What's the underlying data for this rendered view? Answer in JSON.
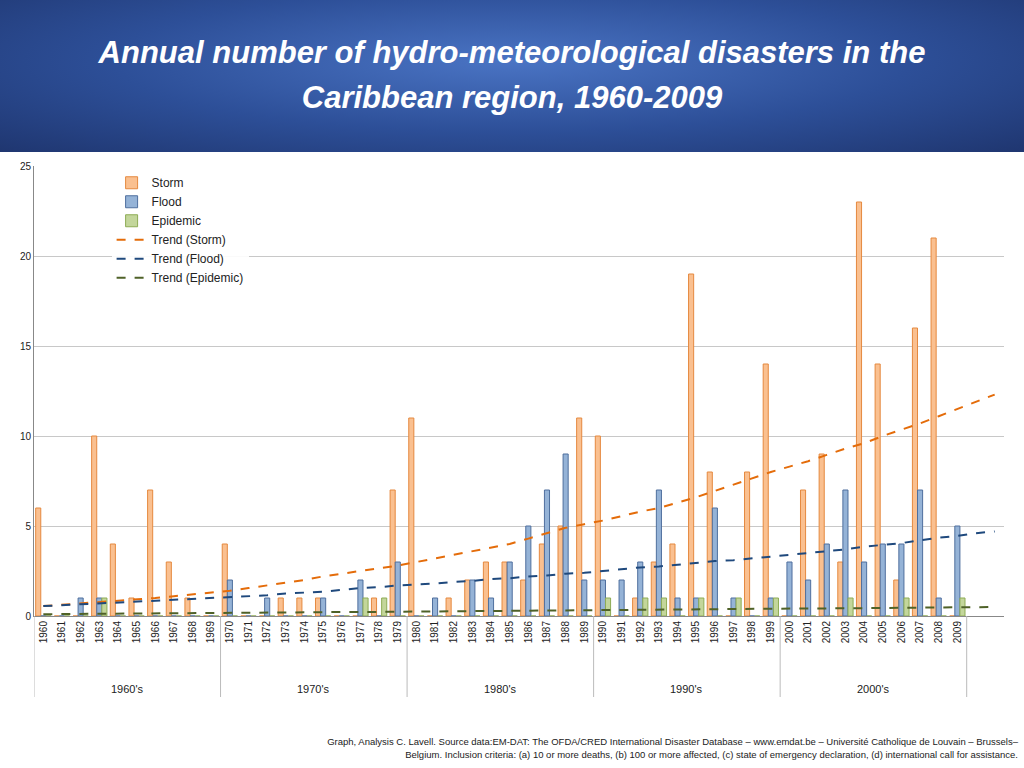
{
  "chart_data": {
    "type": "bar",
    "title": "Annual number of hydro-meteorological disasters in the Caribbean region, 1960-2009",
    "source": "Graph, Analysis C. Lavell. Source data:EM-DAT: The OFDA/CRED International Disaster Database – www.emdat.be – Université Catholique de Louvain – Brussels– Belgium. Inclusion criteria: (a) 10 or more deaths, (b) 100 or more affected, (c) state of emergency declaration, (d) international call for assistance.",
    "categories": [
      "1960",
      "1961",
      "1962",
      "1963",
      "1964",
      "1965",
      "1966",
      "1967",
      "1968",
      "1969",
      "1970",
      "1971",
      "1972",
      "1973",
      "1974",
      "1975",
      "1976",
      "1977",
      "1978",
      "1979",
      "1980",
      "1981",
      "1982",
      "1983",
      "1984",
      "1985",
      "1986",
      "1987",
      "1988",
      "1989",
      "1990",
      "1991",
      "1992",
      "1993",
      "1994",
      "1995",
      "1996",
      "1997",
      "1998",
      "1999",
      "2000",
      "2001",
      "2002",
      "2003",
      "2004",
      "2005",
      "2006",
      "2007",
      "2008",
      "2009",
      null,
      null
    ],
    "x_groups": [
      "1960's",
      "1970's",
      "1980's",
      "1990's",
      "2000's"
    ],
    "series": [
      {
        "name": "Storm",
        "type": "bar",
        "color": "#fac090",
        "values": [
          6,
          0,
          0,
          10,
          4,
          1,
          7,
          3,
          1,
          0,
          4,
          0,
          0,
          1,
          1,
          1,
          0,
          0,
          1,
          7,
          11,
          0,
          1,
          2,
          3,
          3,
          2,
          4,
          5,
          11,
          10,
          0,
          1,
          3,
          4,
          19,
          8,
          0,
          8,
          14,
          0,
          7,
          9,
          3,
          23,
          14,
          2,
          16,
          21,
          0,
          null,
          null
        ]
      },
      {
        "name": "Flood",
        "type": "bar",
        "color": "#95b3d7",
        "values": [
          0,
          0,
          1,
          1,
          0,
          0,
          0,
          0,
          0,
          0,
          2,
          0,
          1,
          0,
          0,
          1,
          0,
          2,
          0,
          3,
          0,
          1,
          0,
          2,
          1,
          3,
          5,
          7,
          9,
          2,
          2,
          2,
          3,
          7,
          1,
          1,
          6,
          1,
          0,
          1,
          3,
          2,
          4,
          7,
          3,
          4,
          4,
          7,
          1,
          5,
          null,
          null
        ]
      },
      {
        "name": "Epidemic",
        "type": "bar",
        "color": "#c3d69b",
        "values": [
          0,
          0,
          0,
          1,
          0,
          0,
          0,
          0,
          0,
          0,
          0,
          0,
          0,
          0,
          0,
          0,
          0,
          1,
          1,
          0,
          0,
          0,
          0,
          0,
          0,
          0,
          0,
          0,
          0,
          0,
          1,
          0,
          1,
          1,
          0,
          1,
          0,
          1,
          0,
          1,
          0,
          0,
          0,
          1,
          0,
          0,
          1,
          0,
          0,
          1,
          null,
          null
        ]
      },
      {
        "name": "Trend (Storm)",
        "type": "line",
        "line_style": "dashed",
        "color": "#e46c0a",
        "values": [
          0.55,
          0.62,
          0.7,
          0.77,
          0.85,
          0.92,
          1.0,
          1.1,
          1.2,
          1.3,
          1.4,
          1.55,
          1.7,
          1.85,
          2.0,
          2.2,
          2.35,
          2.5,
          2.65,
          2.8,
          3.0,
          3.2,
          3.4,
          3.6,
          3.8,
          4.0,
          4.3,
          4.6,
          4.9,
          5.1,
          5.3,
          5.55,
          5.8,
          6.0,
          6.3,
          6.6,
          6.95,
          7.3,
          7.65,
          8.0,
          8.3,
          8.6,
          8.95,
          9.3,
          9.6,
          10.0,
          10.35,
          10.7,
          11.1,
          11.5,
          11.9,
          12.3
        ]
      },
      {
        "name": "Trend (Flood)",
        "type": "line",
        "line_style": "dashed",
        "color": "#1f497d",
        "values": [
          0.55,
          0.6,
          0.65,
          0.7,
          0.75,
          0.8,
          0.85,
          0.9,
          0.95,
          1.0,
          1.05,
          1.1,
          1.15,
          1.25,
          1.3,
          1.35,
          1.45,
          1.55,
          1.6,
          1.7,
          1.75,
          1.8,
          1.9,
          1.95,
          2.05,
          2.1,
          2.2,
          2.25,
          2.35,
          2.4,
          2.5,
          2.6,
          2.7,
          2.75,
          2.85,
          2.95,
          3.05,
          3.1,
          3.2,
          3.3,
          3.4,
          3.5,
          3.6,
          3.7,
          3.85,
          3.95,
          4.05,
          4.2,
          4.35,
          4.45,
          4.6,
          4.7
        ]
      },
      {
        "name": "Trend (Epidemic)",
        "type": "line",
        "line_style": "dashed",
        "color": "#4f6228",
        "values": [
          0.1,
          0.11,
          0.12,
          0.12,
          0.13,
          0.14,
          0.15,
          0.16,
          0.16,
          0.17,
          0.18,
          0.18,
          0.19,
          0.2,
          0.2,
          0.21,
          0.22,
          0.22,
          0.23,
          0.24,
          0.25,
          0.26,
          0.26,
          0.27,
          0.28,
          0.29,
          0.3,
          0.3,
          0.31,
          0.32,
          0.33,
          0.34,
          0.34,
          0.35,
          0.36,
          0.37,
          0.38,
          0.38,
          0.39,
          0.4,
          0.41,
          0.42,
          0.42,
          0.43,
          0.44,
          0.45,
          0.46,
          0.46,
          0.47,
          0.48,
          0.49,
          0.5
        ]
      }
    ],
    "ylim": [
      0,
      25
    ],
    "yticks": [
      0,
      5,
      10,
      15,
      20,
      25
    ],
    "grid": true,
    "legend": "upper left"
  }
}
